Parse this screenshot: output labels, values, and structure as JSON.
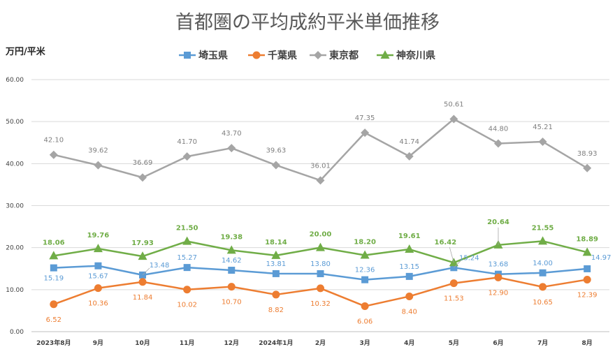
{
  "chart_data": {
    "type": "line",
    "title": "首都圏の平均成約平米単価推移",
    "ylabel": "万円/平米",
    "xlabel": "",
    "categories": [
      "2023年8月",
      "9月",
      "10月",
      "11月",
      "12月",
      "2024年1月",
      "2月",
      "3月",
      "4月",
      "5月",
      "6月",
      "7月",
      "8月"
    ],
    "ylim": [
      0,
      60
    ],
    "yticks": [
      "0.00",
      "10.00",
      "20.00",
      "30.00",
      "40.00",
      "50.00",
      "60.00"
    ],
    "grid": true,
    "legend_position": "top",
    "series": [
      {
        "name": "埼玉県",
        "color": "#5B9BD5",
        "marker": "square",
        "values": [
          15.19,
          15.67,
          13.48,
          15.27,
          14.62,
          13.81,
          13.8,
          12.36,
          13.15,
          15.24,
          13.68,
          14.0,
          14.97
        ],
        "labels": [
          "15.19",
          "15.67",
          "13.48",
          "15.27",
          "14.62",
          "13.81",
          "13.80",
          "12.36",
          "13.15",
          "15.24",
          "13.68",
          "14.00",
          "14.97"
        ]
      },
      {
        "name": "千葉県",
        "color": "#ED7D31",
        "marker": "circle",
        "values": [
          6.52,
          10.36,
          11.84,
          10.02,
          10.7,
          8.82,
          10.32,
          6.06,
          8.4,
          11.53,
          12.9,
          10.65,
          12.39
        ],
        "labels": [
          "6.52",
          "10.36",
          "11.84",
          "10.02",
          "10.70",
          "8.82",
          "10.32",
          "6.06",
          "8.40",
          "11.53",
          "12.90",
          "10.65",
          "12.39"
        ]
      },
      {
        "name": "東京都",
        "color": "#A5A5A5",
        "marker": "diamond",
        "values": [
          42.1,
          39.62,
          36.69,
          41.7,
          43.7,
          39.63,
          36.01,
          47.35,
          41.74,
          50.61,
          44.8,
          45.21,
          38.93
        ],
        "labels": [
          "42.10",
          "39.62",
          "36.69",
          "41.70",
          "43.70",
          "39.63",
          "36.01",
          "47.35",
          "41.74",
          "50.61",
          "44.80",
          "45.21",
          "38.93"
        ]
      },
      {
        "name": "神奈川県",
        "color": "#70AD47",
        "marker": "triangle",
        "values": [
          18.06,
          19.76,
          17.93,
          21.5,
          19.38,
          18.14,
          20.0,
          18.2,
          19.61,
          16.42,
          20.64,
          21.55,
          18.89
        ],
        "labels": [
          "18.06",
          "19.76",
          "17.93",
          "21.50",
          "19.38",
          "18.14",
          "20.00",
          "18.20",
          "19.61",
          "16.42",
          "20.64",
          "21.55",
          "18.89"
        ]
      }
    ]
  }
}
